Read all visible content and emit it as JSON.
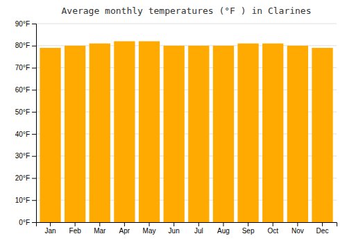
{
  "chart_data": {
    "type": "bar",
    "title": "Average monthly temperatures (°F ) in Clarines",
    "categories": [
      "Jan",
      "Feb",
      "Mar",
      "Apr",
      "May",
      "Jun",
      "Jul",
      "Aug",
      "Sep",
      "Oct",
      "Nov",
      "Dec"
    ],
    "values": [
      79,
      80,
      81,
      82,
      82,
      80,
      80,
      80,
      81,
      81,
      80,
      79
    ],
    "color": "#FFAA00",
    "ylim": [
      0,
      90
    ],
    "yticks": [
      {
        "value": 0,
        "label": "0°F"
      },
      {
        "value": 10,
        "label": "10°F"
      },
      {
        "value": 20,
        "label": "20°F"
      },
      {
        "value": 30,
        "label": "30°F"
      },
      {
        "value": 40,
        "label": "40°F"
      },
      {
        "value": 50,
        "label": "50°F"
      },
      {
        "value": 60,
        "label": "60°F"
      },
      {
        "value": 70,
        "label": "70°F"
      },
      {
        "value": 80,
        "label": "80°F"
      },
      {
        "value": 90,
        "label": "90°F"
      }
    ],
    "grid": true
  }
}
